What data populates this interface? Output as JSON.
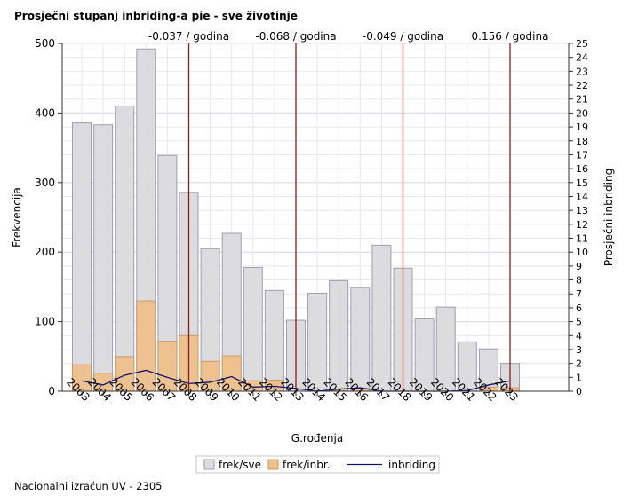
{
  "title": "Prosječni stupanj inbriding-a pie - sve životinje",
  "footnote": "Nacionalni izračun UV - 2305",
  "chart_data": {
    "type": "bar",
    "xlabel": "G.rođenja",
    "ylabel": "Frekvencija",
    "y2label": "Prosječni inbriding",
    "categories": [
      "2003",
      "2004",
      "2005",
      "2006",
      "2007",
      "2008",
      "2009",
      "2010",
      "2011",
      "2012",
      "2013",
      "2014",
      "2015",
      "2016",
      "2017",
      "2018",
      "2019",
      "2020",
      "2021",
      "2022",
      "2023"
    ],
    "ylim": [
      0,
      500
    ],
    "yticks": [
      0,
      100,
      200,
      300,
      400,
      500
    ],
    "y2lim": [
      0,
      25
    ],
    "y2ticks": [
      0,
      1,
      2,
      3,
      4,
      5,
      6,
      7,
      8,
      9,
      10,
      11,
      12,
      13,
      14,
      15,
      16,
      17,
      18,
      19,
      20,
      21,
      22,
      23,
      24,
      25
    ],
    "grid": true,
    "series": [
      {
        "name": "frek/sve",
        "kind": "bar",
        "color": "#dcdcde",
        "stroke": "#9e9eb6",
        "values": [
          386,
          383,
          410,
          492,
          339,
          286,
          205,
          227,
          178,
          145,
          102,
          141,
          159,
          149,
          210,
          177,
          104,
          121,
          71,
          61,
          40
        ]
      },
      {
        "name": "frek/inbr.",
        "kind": "bar",
        "color": "#eec190",
        "stroke": "#cf9a62",
        "values": [
          38,
          26,
          50,
          130,
          72,
          80,
          43,
          51,
          15,
          16,
          0,
          0,
          1,
          4,
          0,
          0,
          0,
          0,
          0,
          6,
          5
        ]
      },
      {
        "name": "inbriding",
        "kind": "line",
        "axis": "y2",
        "color": "#141470",
        "values": [
          0.75,
          0.45,
          1.15,
          1.5,
          1.0,
          0.55,
          0.65,
          1.05,
          0.3,
          0.35,
          0.2,
          0.0,
          0.15,
          0.25,
          0.0,
          0.0,
          0.0,
          0.0,
          0.05,
          0.45,
          0.75
        ]
      }
    ],
    "reference_lines": [
      {
        "category": "2008",
        "label": "-0.037 / godina",
        "color": "#8b1a1a"
      },
      {
        "category": "2013",
        "label": "-0.068 / godina",
        "color": "#8b1a1a"
      },
      {
        "category": "2018",
        "label": "-0.049 / godina",
        "color": "#8b1a1a"
      },
      {
        "category": "2023",
        "label": "0.156 / godina",
        "color": "#8b1a1a"
      }
    ],
    "legend_position": "bottom"
  }
}
